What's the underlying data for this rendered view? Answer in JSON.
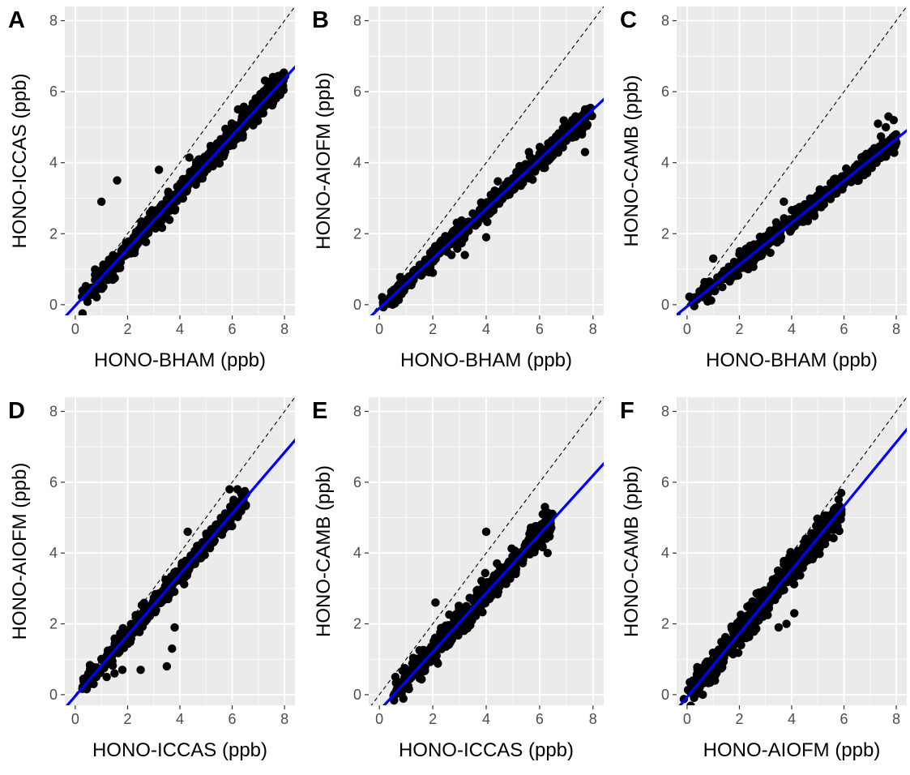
{
  "colors": {
    "panel_bg": "#ebebeb",
    "grid_major": "#ffffff",
    "points": "#000000",
    "fit_line": "#0000ff",
    "identity_line": "#000000"
  },
  "chart_data": [
    {
      "panel": "A",
      "type": "scatter",
      "xlabel": "HONO-BHAM (ppb)",
      "ylabel": "HONO-ICCAS (ppb)",
      "xlim": [
        -0.4,
        8.4
      ],
      "ylim": [
        -0.3,
        8.4
      ],
      "xticks": [
        0,
        2,
        4,
        6,
        8
      ],
      "yticks": [
        0,
        2,
        4,
        6,
        8
      ],
      "fit": {
        "slope": 0.8,
        "intercept": -0.03
      },
      "identity_line": true,
      "points": {
        "x_range": [
          0.3,
          8.0
        ],
        "slope": 0.8,
        "intercept": -0.03,
        "spread": 0.18,
        "outliers": [
          [
            1.0,
            2.9
          ],
          [
            1.6,
            3.5
          ],
          [
            3.2,
            3.8
          ],
          [
            0.8,
            0.4
          ]
        ]
      }
    },
    {
      "panel": "B",
      "type": "scatter",
      "xlabel": "HONO-BHAM (ppb)",
      "ylabel": "HONO-AIOFM (ppb)",
      "xlim": [
        -0.4,
        8.4
      ],
      "ylim": [
        -0.3,
        8.4
      ],
      "xticks": [
        0,
        2,
        4,
        6,
        8
      ],
      "yticks": [
        0,
        2,
        4,
        6,
        8
      ],
      "fit": {
        "slope": 0.7,
        "intercept": -0.1
      },
      "identity_line": true,
      "points": {
        "x_range": [
          0.1,
          7.9
        ],
        "slope": 0.7,
        "intercept": -0.1,
        "spread": 0.14,
        "outliers": [
          [
            2.0,
            0.9
          ],
          [
            2.7,
            1.4
          ],
          [
            3.2,
            1.4
          ],
          [
            4.0,
            1.9
          ],
          [
            7.7,
            4.3
          ],
          [
            5.6,
            4.3
          ]
        ]
      }
    },
    {
      "panel": "C",
      "type": "scatter",
      "xlabel": "HONO-BHAM (ppb)",
      "ylabel": "HONO-CAMB (ppb)",
      "xlim": [
        -0.4,
        8.4
      ],
      "ylim": [
        -0.3,
        8.4
      ],
      "xticks": [
        0,
        2,
        4,
        6,
        8
      ],
      "yticks": [
        0,
        2,
        4,
        6,
        8
      ],
      "fit": {
        "slope": 0.59,
        "intercept": -0.05
      },
      "identity_line": true,
      "points": {
        "x_range": [
          0.1,
          8.0
        ],
        "slope": 0.59,
        "intercept": -0.05,
        "spread": 0.14,
        "outliers": [
          [
            7.7,
            5.3
          ],
          [
            7.9,
            5.2
          ],
          [
            7.6,
            5.0
          ],
          [
            3.7,
            2.9
          ],
          [
            1.0,
            1.3
          ],
          [
            7.3,
            5.1
          ]
        ]
      }
    },
    {
      "panel": "D",
      "type": "scatter",
      "xlabel": "HONO-ICCAS (ppb)",
      "ylabel": "HONO-AIOFM (ppb)",
      "xlim": [
        -0.4,
        8.4
      ],
      "ylim": [
        -0.3,
        8.4
      ],
      "xticks": [
        0,
        2,
        4,
        6,
        8
      ],
      "yticks": [
        0,
        2,
        4,
        6,
        8
      ],
      "fit": {
        "slope": 0.86,
        "intercept": -0.04
      },
      "identity_line": true,
      "points": {
        "x_range": [
          0.3,
          6.5
        ],
        "slope": 0.86,
        "intercept": -0.04,
        "spread": 0.14,
        "outliers": [
          [
            1.2,
            0.5
          ],
          [
            1.5,
            0.6
          ],
          [
            1.8,
            0.7
          ],
          [
            2.5,
            0.7
          ],
          [
            3.5,
            0.8
          ],
          [
            3.7,
            1.3
          ],
          [
            3.8,
            1.9
          ],
          [
            0.7,
            0.3
          ],
          [
            4.3,
            4.6
          ],
          [
            5.9,
            5.8
          ],
          [
            6.2,
            5.8
          ]
        ]
      }
    },
    {
      "panel": "E",
      "type": "scatter",
      "xlabel": "HONO-ICCAS (ppb)",
      "ylabel": "HONO-CAMB (ppb)",
      "xlim": [
        -0.4,
        8.4
      ],
      "ylim": [
        -0.3,
        8.4
      ],
      "xticks": [
        0,
        2,
        4,
        6,
        8
      ],
      "yticks": [
        0,
        2,
        4,
        6,
        8
      ],
      "fit": {
        "slope": 0.83,
        "intercept": -0.45
      },
      "identity_line": true,
      "points": {
        "x_range": [
          0.5,
          6.5
        ],
        "slope": 0.83,
        "intercept": -0.45,
        "spread": 0.18,
        "outliers": [
          [
            0.6,
            0.5
          ],
          [
            0.7,
            0.3
          ],
          [
            2.1,
            2.6
          ],
          [
            6.3,
            4.0
          ],
          [
            6.1,
            4.2
          ],
          [
            4.0,
            4.6
          ],
          [
            6.2,
            5.3
          ]
        ]
      }
    },
    {
      "panel": "F",
      "type": "scatter",
      "xlabel": "HONO-AIOFM (ppb)",
      "ylabel": "HONO-CAMB (ppb)",
      "xlim": [
        -0.4,
        8.4
      ],
      "ylim": [
        -0.3,
        8.4
      ],
      "xticks": [
        0,
        2,
        4,
        6,
        8
      ],
      "yticks": [
        0,
        2,
        4,
        6,
        8
      ],
      "fit": {
        "slope": 0.9,
        "intercept": -0.07
      },
      "identity_line": true,
      "points": {
        "x_range": [
          0.0,
          5.9
        ],
        "slope": 0.9,
        "intercept": -0.07,
        "spread": 0.2,
        "outliers": [
          [
            3.8,
            2.0
          ],
          [
            4.1,
            2.3
          ],
          [
            3.5,
            1.9
          ],
          [
            2.9,
            2.2
          ],
          [
            0.4,
            0.7
          ],
          [
            0.6,
            0.0
          ]
        ]
      }
    }
  ]
}
